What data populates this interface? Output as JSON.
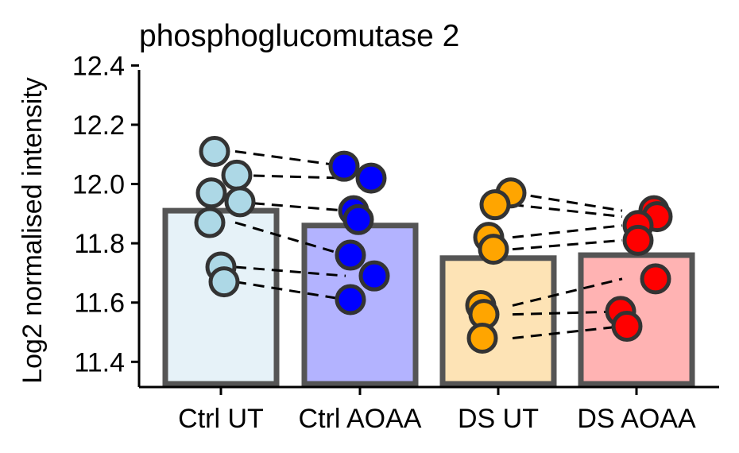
{
  "chart_data": {
    "type": "bar",
    "title": "phosphoglucomutase 2",
    "xlabel": "",
    "ylabel": "Log2 normalised intensity",
    "ylim": [
      11.315,
      12.46
    ],
    "yticks": [
      11.4,
      11.6,
      11.8,
      12.0,
      12.2,
      12.4
    ],
    "ytick_labels": [
      "11.4",
      "11.6",
      "11.8",
      "12.0",
      "12.2",
      "12.4"
    ],
    "categories": [
      "Ctrl UT",
      "Ctrl AOAA",
      "DS UT",
      "DS AOAA"
    ],
    "bar_values": [
      11.91,
      11.86,
      11.75,
      11.76
    ],
    "bar_fill_colors": [
      "#e6f2f8",
      "#b3b3ff",
      "#fde3b5",
      "#ffb3b3"
    ],
    "point_colors": [
      "#add8e6",
      "#0000ff",
      "#ffa500",
      "#ff0000"
    ],
    "bar_edge_color": "#555555",
    "grid": false,
    "legend": "none",
    "points": [
      [
        12.11,
        12.03,
        11.97,
        11.94,
        11.87,
        11.72,
        11.67
      ],
      [
        12.06,
        12.02,
        11.91,
        11.88,
        11.76,
        11.69,
        11.61
      ],
      [
        11.97,
        11.93,
        11.82,
        11.78,
        11.59,
        11.56,
        11.48
      ],
      [
        11.91,
        11.89,
        11.86,
        11.81,
        11.68,
        11.57,
        11.52
      ]
    ],
    "pairs": [
      {
        "from": [
          0,
          12.11
        ],
        "to": [
          1,
          12.06
        ]
      },
      {
        "from": [
          0,
          12.03
        ],
        "to": [
          1,
          12.02
        ]
      },
      {
        "from": [
          0,
          11.94
        ],
        "to": [
          1,
          11.91
        ]
      },
      {
        "from": [
          0,
          11.87
        ],
        "to": [
          1,
          11.76
        ]
      },
      {
        "from": [
          0,
          11.72
        ],
        "to": [
          1,
          11.69
        ]
      },
      {
        "from": [
          0,
          11.67
        ],
        "to": [
          1,
          11.61
        ]
      },
      {
        "from": [
          2,
          11.97
        ],
        "to": [
          3,
          11.91
        ]
      },
      {
        "from": [
          2,
          11.93
        ],
        "to": [
          3,
          11.89
        ]
      },
      {
        "from": [
          2,
          11.82
        ],
        "to": [
          3,
          11.86
        ]
      },
      {
        "from": [
          2,
          11.78
        ],
        "to": [
          3,
          11.81
        ]
      },
      {
        "from": [
          2,
          11.59
        ],
        "to": [
          3,
          11.68
        ]
      },
      {
        "from": [
          2,
          11.56
        ],
        "to": [
          3,
          11.57
        ]
      },
      {
        "from": [
          2,
          11.48
        ],
        "to": [
          3,
          11.52
        ]
      }
    ]
  }
}
